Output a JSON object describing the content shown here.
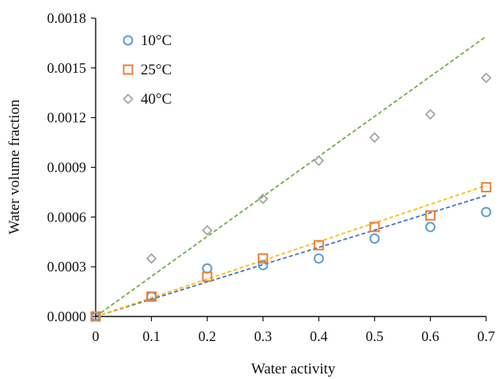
{
  "chart_data": {
    "type": "scatter",
    "xlabel": "Water activity",
    "ylabel": "Water volume fraction",
    "xlim": [
      0,
      0.7
    ],
    "ylim": [
      0,
      0.0018
    ],
    "xticks": [
      "0",
      "0.1",
      "0.2",
      "0.3",
      "0.4",
      "0.5",
      "0.6",
      "0.7"
    ],
    "yticks": [
      "0.0000",
      "0.0003",
      "0.0006",
      "0.0009",
      "0.0012",
      "0.0015",
      "0.0018"
    ],
    "grid": false,
    "legend_position": "top-left",
    "series": [
      {
        "name": "10°C",
        "marker": "circle",
        "color": "#5B9BD5",
        "points": [
          {
            "x": 0,
            "y": 0.0
          },
          {
            "x": 0.1,
            "y": 0.00012
          },
          {
            "x": 0.2,
            "y": 0.00029
          },
          {
            "x": 0.3,
            "y": 0.00031
          },
          {
            "x": 0.4,
            "y": 0.00035
          },
          {
            "x": 0.5,
            "y": 0.00047
          },
          {
            "x": 0.6,
            "y": 0.00054
          },
          {
            "x": 0.7,
            "y": 0.00063
          }
        ],
        "fit_line": {
          "color": "#4472C4",
          "style": "dashed",
          "x": [
            0,
            0.7
          ],
          "y": [
            0.0,
            0.00073
          ]
        }
      },
      {
        "name": "25°C",
        "marker": "square",
        "color": "#ED7D31",
        "points": [
          {
            "x": 0,
            "y": 0.0
          },
          {
            "x": 0.1,
            "y": 0.00012
          },
          {
            "x": 0.2,
            "y": 0.00024
          },
          {
            "x": 0.3,
            "y": 0.00035
          },
          {
            "x": 0.4,
            "y": 0.00043
          },
          {
            "x": 0.5,
            "y": 0.00054
          },
          {
            "x": 0.6,
            "y": 0.00061
          },
          {
            "x": 0.7,
            "y": 0.00078
          }
        ],
        "fit_line": {
          "color": "#FFC000",
          "style": "dashed",
          "x": [
            0,
            0.7
          ],
          "y": [
            0.0,
            0.00079
          ]
        }
      },
      {
        "name": "40°C",
        "marker": "diamond",
        "color": "#A5A5A5",
        "points": [
          {
            "x": 0,
            "y": 0.0
          },
          {
            "x": 0.1,
            "y": 0.00035
          },
          {
            "x": 0.2,
            "y": 0.00052
          },
          {
            "x": 0.3,
            "y": 0.00071
          },
          {
            "x": 0.4,
            "y": 0.00094
          },
          {
            "x": 0.5,
            "y": 0.00108
          },
          {
            "x": 0.6,
            "y": 0.00122
          },
          {
            "x": 0.7,
            "y": 0.00144
          }
        ],
        "fit_line": {
          "color": "#70AD47",
          "style": "dashed",
          "x": [
            0,
            0.7
          ],
          "y": [
            0.0,
            0.00169
          ]
        }
      }
    ]
  }
}
